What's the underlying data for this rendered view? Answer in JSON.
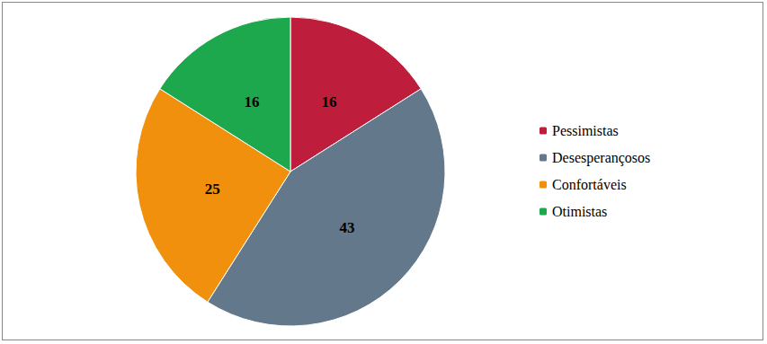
{
  "chart_data": {
    "type": "pie",
    "categories": [
      "Pessimistas",
      "Desesperançosos",
      "Confortáveis",
      "Otimistas"
    ],
    "values": [
      16,
      43,
      25,
      16
    ],
    "colors": [
      "#BE1E3C",
      "#64788C",
      "#F0900C",
      "#1EA84E"
    ],
    "data_labels": true,
    "legend": "right"
  }
}
